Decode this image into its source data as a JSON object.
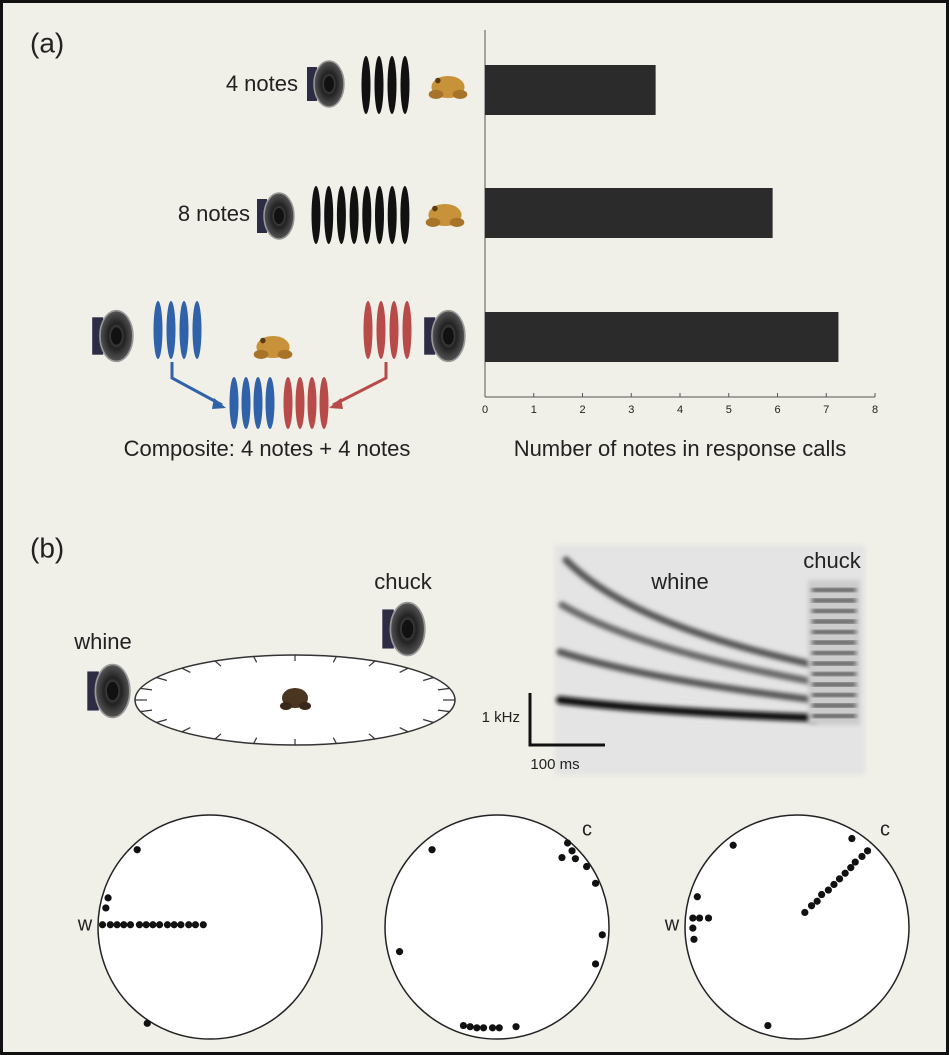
{
  "panels": [
    "(a)",
    "(b)"
  ],
  "chart_data": [
    {
      "type": "bar",
      "orientation": "horizontal",
      "categories": [
        "4 notes",
        "8 notes",
        "Composite: 4 notes + 4 notes"
      ],
      "values": [
        3.5,
        5.9,
        7.25
      ],
      "color": "#2b2b2b",
      "xlim": [
        0,
        8
      ],
      "xticks": [
        0,
        1,
        2,
        3,
        4,
        5,
        6,
        7,
        8
      ],
      "xlabel": "Number of notes in response calls"
    },
    {
      "type": "scatter",
      "color": "#111",
      "labels": [
        "w"
      ],
      "x": [
        -0.65,
        -0.91,
        -0.93,
        -0.96,
        -0.89,
        -0.83,
        -0.77,
        -0.71,
        -0.63,
        -0.57,
        -0.51,
        -0.45,
        -0.38,
        -0.32,
        -0.26,
        -0.19,
        -0.13,
        -0.06,
        -0.56
      ],
      "y": [
        0.69,
        0.26,
        0.17,
        0.02,
        0.02,
        0.02,
        0.02,
        0.02,
        0.02,
        0.02,
        0.02,
        0.02,
        0.02,
        0.02,
        0.02,
        0.02,
        0.02,
        0.02,
        -0.86
      ]
    },
    {
      "type": "scatter",
      "color": "#111",
      "labels": [
        "c"
      ],
      "x": [
        -0.58,
        0.63,
        0.67,
        0.58,
        0.7,
        0.8,
        0.88,
        0.94,
        0.88,
        -0.87,
        -0.3,
        -0.24,
        -0.18,
        -0.12,
        -0.04,
        0.02,
        0.17
      ],
      "y": [
        0.69,
        0.75,
        0.68,
        0.62,
        0.61,
        0.54,
        0.39,
        -0.07,
        -0.33,
        -0.22,
        -0.88,
        -0.89,
        -0.9,
        -0.9,
        -0.9,
        -0.9,
        -0.89
      ]
    },
    {
      "type": "scatter",
      "color": "#111",
      "labels": [
        "w",
        "c"
      ],
      "x": [
        -0.57,
        0.49,
        0.63,
        0.58,
        0.52,
        0.48,
        0.43,
        0.38,
        0.33,
        0.28,
        0.22,
        0.18,
        0.13,
        0.07,
        -0.89,
        -0.93,
        -0.87,
        -0.79,
        -0.93,
        -0.92,
        -0.26
      ],
      "y": [
        0.73,
        0.79,
        0.68,
        0.63,
        0.58,
        0.53,
        0.48,
        0.43,
        0.38,
        0.33,
        0.29,
        0.23,
        0.19,
        0.13,
        0.27,
        0.08,
        0.08,
        0.08,
        -0.01,
        -0.11,
        -0.88
      ]
    }
  ],
  "arena": {
    "left_label": "whine",
    "right_label": "chuck"
  },
  "spectrogram": {
    "whine_label": "whine",
    "chuck_label": "chuck",
    "freq_scale": "1 kHz",
    "time_scale": "100 ms"
  }
}
